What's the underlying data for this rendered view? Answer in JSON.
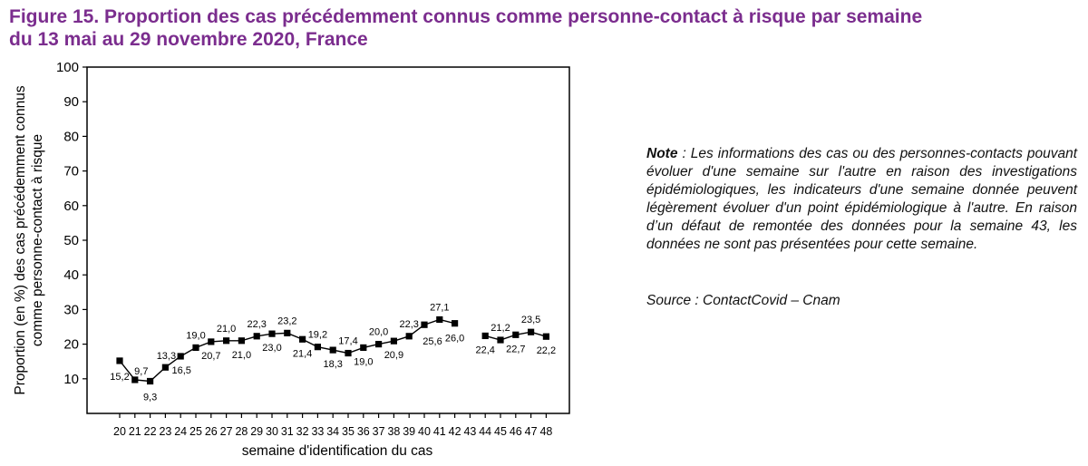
{
  "figure": {
    "title_line1": "Figure 15. Proportion des cas précédemment connus comme personne-contact à risque par semaine",
    "title_line2": "du 13 mai au 29 novembre 2020, France",
    "title_color": "#7b2d8e"
  },
  "note": {
    "label": "Note",
    "separator": " : ",
    "text": "Les informations des cas ou des personnes-contacts pouvant évoluer d'une semaine sur l'autre en raison des investigations épidémiologiques, les indicateurs d'une semaine donnée peuvent légèrement évoluer d'un point épidémiologique à l'autre. En raison d’un défaut de remontée des données pour la semaine 43, les données ne sont pas présentées pour cette semaine."
  },
  "source": "Source : ContactCovid – Cnam",
  "chart_data": {
    "type": "line",
    "title": "",
    "xlabel": "semaine d'identification du cas",
    "ylabel_line1": "Proportion (en %) des cas précédemment connus",
    "ylabel_line2": "comme personne-contact à risque",
    "ylim": [
      0,
      100
    ],
    "yticks": [
      "10",
      "20",
      "30",
      "40",
      "50",
      "60",
      "70",
      "80",
      "90",
      "100"
    ],
    "grid": false,
    "legend": "none",
    "line_color": "#000000",
    "categories": [
      "20",
      "21",
      "22",
      "23",
      "24",
      "25",
      "26",
      "27",
      "28",
      "29",
      "30",
      "31",
      "32",
      "33",
      "34",
      "35",
      "36",
      "37",
      "38",
      "39",
      "40",
      "41",
      "42",
      "43",
      "44",
      "45",
      "46",
      "47",
      "48"
    ],
    "values": [
      15.2,
      9.7,
      9.3,
      13.3,
      16.5,
      19.0,
      20.7,
      21.0,
      21.0,
      22.3,
      23.0,
      23.2,
      21.4,
      19.2,
      18.3,
      17.4,
      19.0,
      20.0,
      20.9,
      22.3,
      25.6,
      27.1,
      26.0,
      null,
      22.4,
      21.2,
      22.7,
      23.5,
      22.2
    ],
    "labels": [
      "15,2",
      "9,7",
      "9,3",
      "13,3",
      "16,5",
      "19,0",
      "20,7",
      "21,0",
      "21,0",
      "22,3",
      "23,0",
      "23,2",
      "21,4",
      "19,2",
      "18,3",
      "17,4",
      "19,0",
      "20,0",
      "20,9",
      "22,3",
      "25,6",
      "27,1",
      "26,0",
      "",
      "22,4",
      "21,2",
      "22,7",
      "23,5",
      "22,2"
    ]
  }
}
